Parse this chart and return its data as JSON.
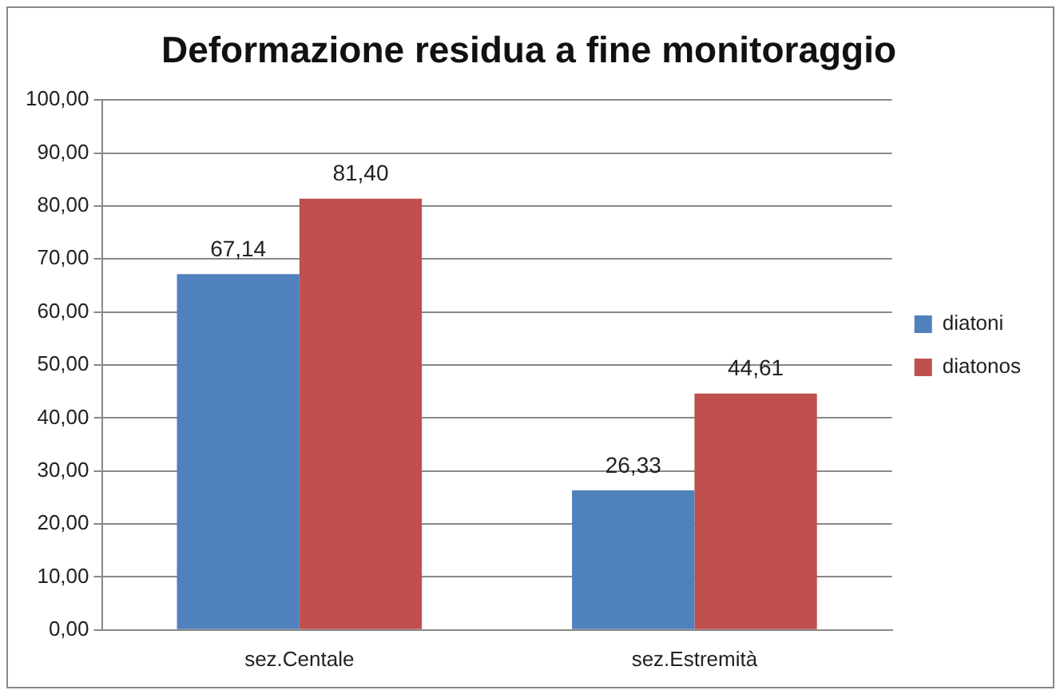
{
  "chart_data": {
    "type": "bar",
    "title": "Deformazione residua a fine monitoraggio",
    "categories": [
      "sez.Centale",
      "sez.Estremità"
    ],
    "series": [
      {
        "name": "diatoni",
        "color": "#4f81bd",
        "values": [
          67.14,
          26.33
        ],
        "value_labels": [
          "67,14",
          "26,33"
        ]
      },
      {
        "name": "diatonos",
        "color": "#c0504d",
        "values": [
          81.4,
          44.61
        ],
        "value_labels": [
          "81,40",
          "44,61"
        ]
      }
    ],
    "ylim": [
      0,
      100
    ],
    "yticks": [
      {
        "value": 0,
        "label": "0,00"
      },
      {
        "value": 10,
        "label": "10,00"
      },
      {
        "value": 20,
        "label": "20,00"
      },
      {
        "value": 30,
        "label": "30,00"
      },
      {
        "value": 40,
        "label": "40,00"
      },
      {
        "value": 50,
        "label": "50,00"
      },
      {
        "value": 60,
        "label": "60,00"
      },
      {
        "value": 70,
        "label": "70,00"
      },
      {
        "value": 80,
        "label": "80,00"
      },
      {
        "value": 90,
        "label": "90,00"
      },
      {
        "value": 100,
        "label": "100,00"
      }
    ],
    "grid": "y",
    "legend": "right"
  }
}
